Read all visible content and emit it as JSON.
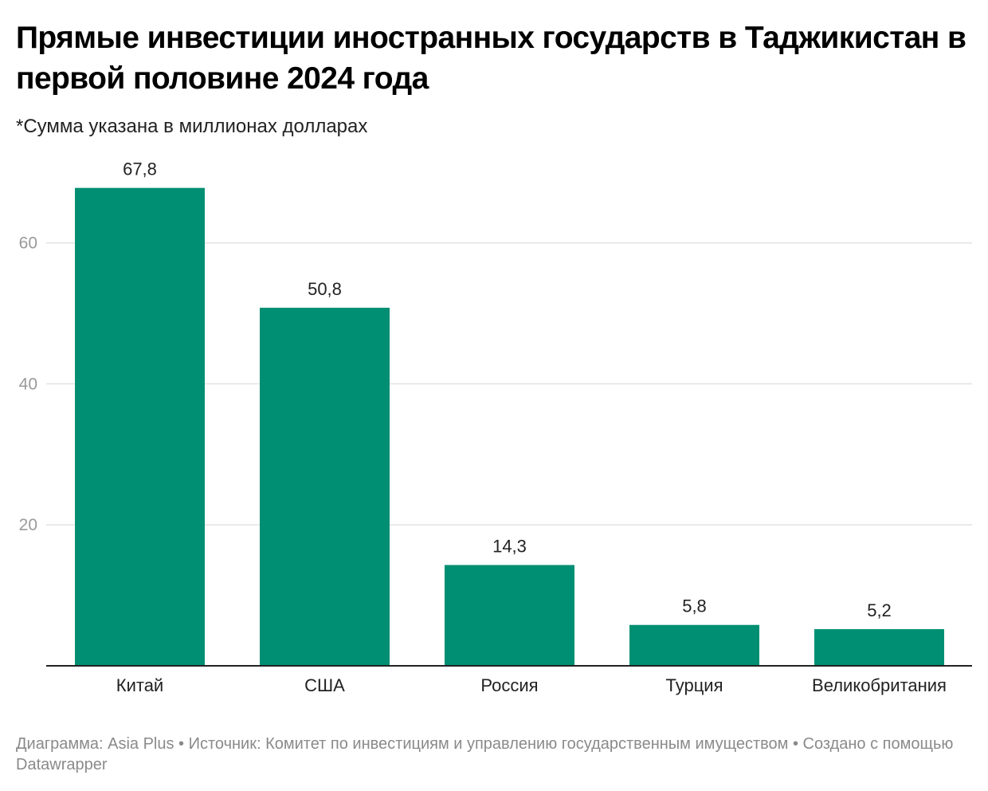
{
  "header": {
    "title": "Прямые инвестиции иностранных государств в Таджикистан в первой половине 2024 года",
    "subtitle": "*Сумма указана в миллионах долларах"
  },
  "footer": {
    "text": "Диаграмма: Asia Plus • Источник: Комитет по инвестициям и управлению государственным имуществом • Создано с помощью Datawrapper"
  },
  "colors": {
    "bar": "#008f72",
    "grid": "#e2e2e2",
    "axis": "#222222"
  },
  "chart_data": {
    "type": "bar",
    "title": "Прямые инвестиции иностранных государств в Таджикистан в первой половине 2024 года",
    "subtitle": "*Сумма указана в миллионах долларах",
    "xlabel": "",
    "ylabel": "",
    "categories": [
      "Китай",
      "США",
      "Россия",
      "Турция",
      "Великобритания"
    ],
    "values": [
      67.8,
      50.8,
      14.3,
      5.8,
      5.2
    ],
    "value_labels": [
      "67,8",
      "50,8",
      "14,3",
      "5,8",
      "5,2"
    ],
    "yticks": [
      20,
      40,
      60
    ],
    "ytick_labels": [
      "20",
      "40",
      "60"
    ],
    "ylim": [
      0,
      67.8
    ],
    "grid": true,
    "legend": "none"
  }
}
